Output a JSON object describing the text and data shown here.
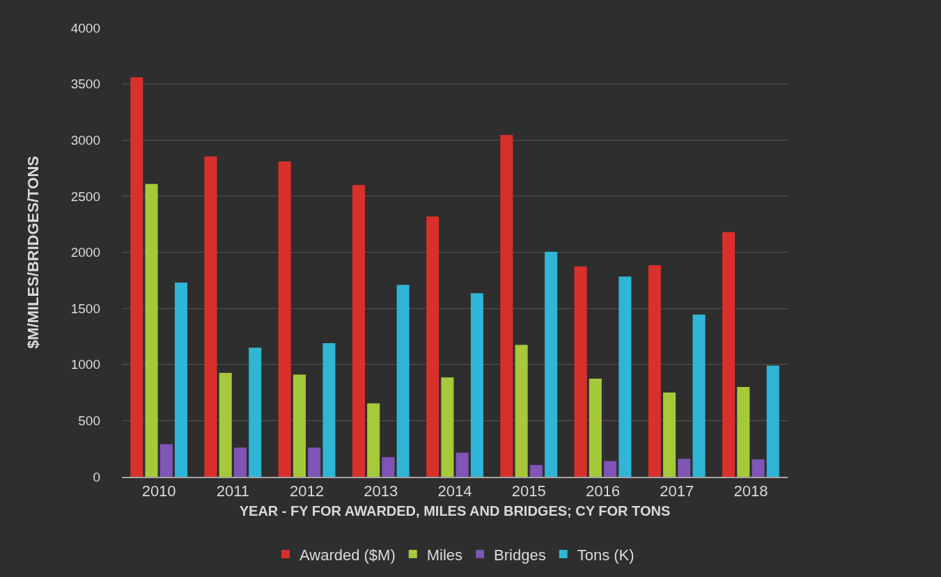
{
  "chart_data": {
    "type": "bar",
    "xlabel": "YEAR - FY FOR AWARDED, MILES AND BRIDGES; CY FOR TONS",
    "ylabel": "$M/MILES/BRIDGES/TONS",
    "categories": [
      "2010",
      "2011",
      "2012",
      "2013",
      "2014",
      "2015",
      "2016",
      "2017",
      "2018"
    ],
    "series": [
      {
        "name": "Awarded ($M)",
        "color": "#d9302c",
        "values": [
          3560,
          2855,
          2810,
          2600,
          2320,
          3045,
          1875,
          1885,
          2180
        ]
      },
      {
        "name": "Miles",
        "color": "#a6c93a",
        "values": [
          2610,
          925,
          910,
          655,
          885,
          1175,
          875,
          750,
          800
        ]
      },
      {
        "name": "Bridges",
        "color": "#7f55b5",
        "values": [
          290,
          260,
          260,
          175,
          215,
          105,
          140,
          160,
          155
        ]
      },
      {
        "name": "Tons (K)",
        "color": "#2fb6d6",
        "values": [
          1730,
          1150,
          1190,
          1710,
          1635,
          2005,
          1785,
          1445,
          990
        ]
      }
    ],
    "ylim": [
      0,
      4000
    ],
    "yticks": [
      0,
      500,
      1000,
      1500,
      2000,
      2500,
      3000,
      3500,
      4000
    ],
    "grid": "y",
    "legend": "bottom"
  }
}
